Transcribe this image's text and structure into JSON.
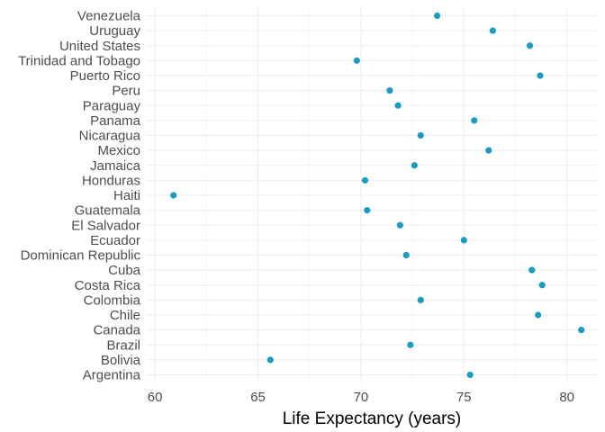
{
  "chart_data": {
    "type": "scatter",
    "title": "",
    "xlabel": "Life Expectancy (years)",
    "ylabel": "",
    "xlim": [
      59.6,
      81.5
    ],
    "xticks": [
      60,
      65,
      70,
      75,
      80
    ],
    "grid": true,
    "legend": "none",
    "point_color": "#1a9bc2",
    "points": [
      {
        "country": "Argentina",
        "life_expectancy": 75.3
      },
      {
        "country": "Bolivia",
        "life_expectancy": 65.6
      },
      {
        "country": "Brazil",
        "life_expectancy": 72.4
      },
      {
        "country": "Canada",
        "life_expectancy": 80.7
      },
      {
        "country": "Chile",
        "life_expectancy": 78.6
      },
      {
        "country": "Colombia",
        "life_expectancy": 72.9
      },
      {
        "country": "Costa Rica",
        "life_expectancy": 78.8
      },
      {
        "country": "Cuba",
        "life_expectancy": 78.3
      },
      {
        "country": "Dominican Republic",
        "life_expectancy": 72.2
      },
      {
        "country": "Ecuador",
        "life_expectancy": 75.0
      },
      {
        "country": "El Salvador",
        "life_expectancy": 71.9
      },
      {
        "country": "Guatemala",
        "life_expectancy": 70.3
      },
      {
        "country": "Haiti",
        "life_expectancy": 60.9
      },
      {
        "country": "Honduras",
        "life_expectancy": 70.2
      },
      {
        "country": "Jamaica",
        "life_expectancy": 72.6
      },
      {
        "country": "Mexico",
        "life_expectancy": 76.2
      },
      {
        "country": "Nicaragua",
        "life_expectancy": 72.9
      },
      {
        "country": "Panama",
        "life_expectancy": 75.5
      },
      {
        "country": "Paraguay",
        "life_expectancy": 71.8
      },
      {
        "country": "Peru",
        "life_expectancy": 71.4
      },
      {
        "country": "Puerto Rico",
        "life_expectancy": 78.7
      },
      {
        "country": "Trinidad and Tobago",
        "life_expectancy": 69.8
      },
      {
        "country": "United States",
        "life_expectancy": 78.2
      },
      {
        "country": "Uruguay",
        "life_expectancy": 76.4
      },
      {
        "country": "Venezuela",
        "life_expectancy": 73.7
      }
    ]
  }
}
